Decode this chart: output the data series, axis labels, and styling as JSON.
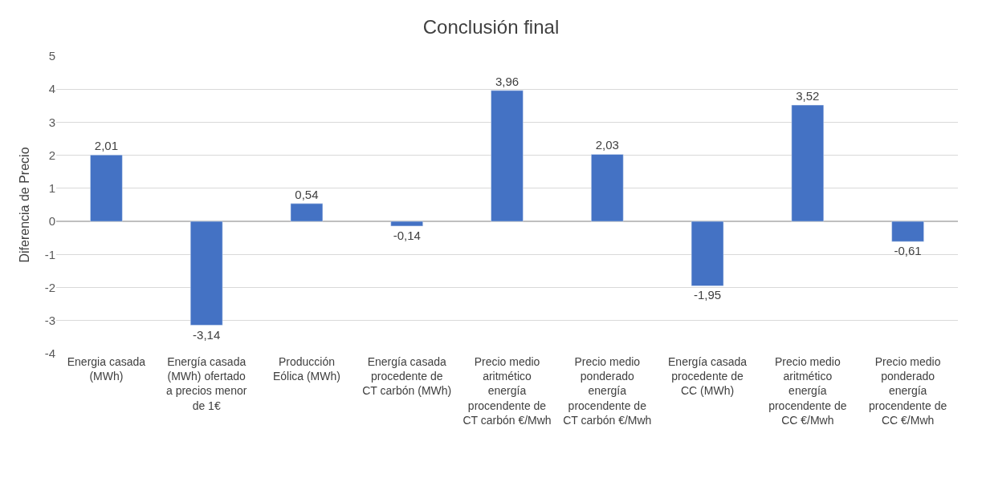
{
  "chart_data": {
    "type": "bar",
    "title": "Conclusión final",
    "ylabel": "Diferencia de Precio",
    "categories": [
      "Energia casada (MWh)",
      "Energía casada (MWh) ofertado a precios menor de 1€",
      "Producción Eólica (MWh)",
      "Energía casada procedente de CT carbón (MWh)",
      "Precio medio aritmético energía procendente de CT carbón €/Mwh",
      "Precio medio ponderado energía procendente de CT carbón €/Mwh",
      "Energía casada procedente de CC (MWh)",
      "Precio medio aritmético energía procendente de CC €/Mwh",
      "Precio medio ponderado energía procendente de CC €/Mwh"
    ],
    "values": [
      2.01,
      -3.14,
      0.54,
      -0.14,
      3.96,
      2.03,
      -1.95,
      3.52,
      -0.61
    ],
    "value_labels": [
      "2,01",
      "-3,14",
      "0,54",
      "-0,14",
      "3,96",
      "2,03",
      "-1,95",
      "3,52",
      "-0,61"
    ],
    "color": "#4472c4",
    "ylim": [
      -4,
      5
    ],
    "yticks": [
      -4,
      -3,
      -2,
      -1,
      0,
      1,
      2,
      3,
      4,
      5
    ],
    "grid": "y"
  }
}
